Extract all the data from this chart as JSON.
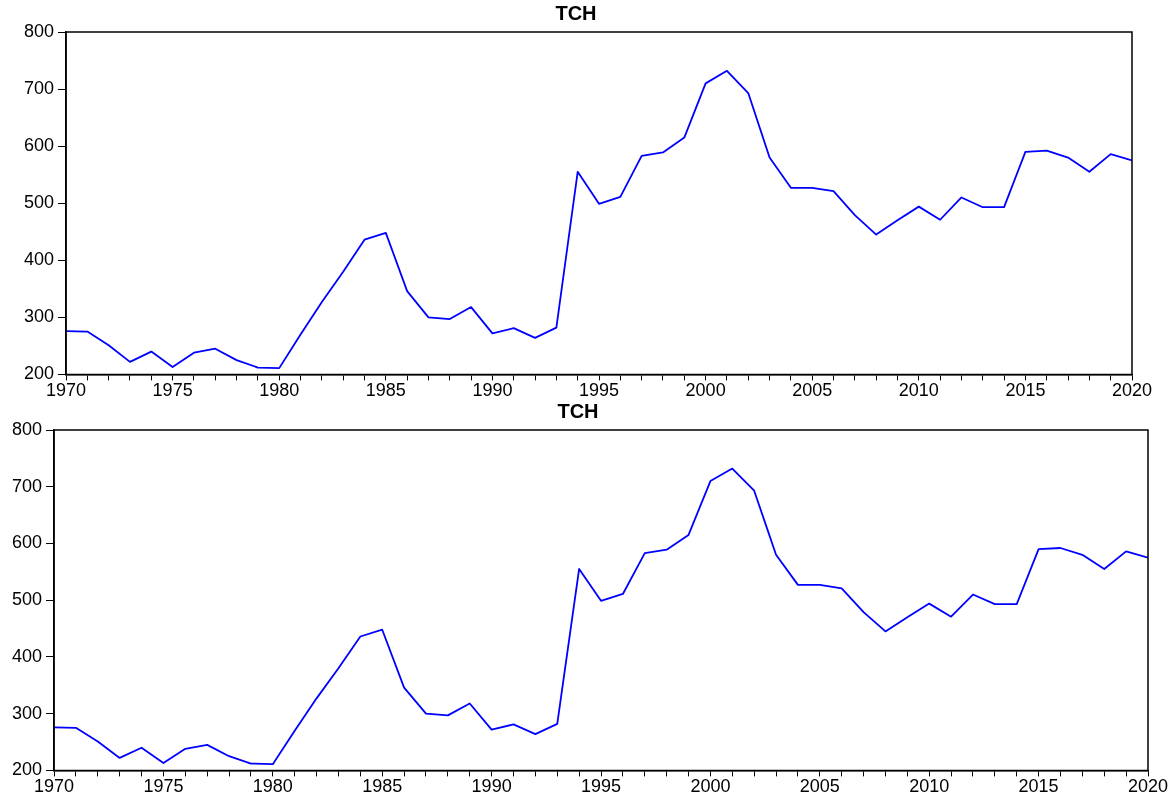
{
  "chart_data": [
    {
      "type": "line",
      "title": "TCH",
      "x": [
        1970,
        1971,
        1972,
        1973,
        1974,
        1975,
        1976,
        1977,
        1978,
        1979,
        1980,
        1981,
        1982,
        1983,
        1984,
        1985,
        1986,
        1987,
        1988,
        1989,
        1990,
        1991,
        1992,
        1993,
        1994,
        1995,
        1996,
        1997,
        1998,
        1999,
        2000,
        2001,
        2002,
        2003,
        2004,
        2005,
        2006,
        2007,
        2008,
        2009,
        2010,
        2011,
        2012,
        2013,
        2014,
        2015,
        2016,
        2017,
        2018,
        2019,
        2020
      ],
      "series": [
        {
          "color": "#0000ff",
          "values": [
            276,
            275,
            251,
            222,
            240,
            213,
            238,
            245,
            225,
            212,
            211,
            270,
            327,
            380,
            436,
            448,
            346,
            300,
            297,
            318,
            272,
            281,
            264,
            282,
            555,
            499,
            511,
            583,
            589,
            615,
            710,
            732,
            693,
            580,
            527,
            527,
            521,
            479,
            445,
            470,
            494,
            471,
            510,
            493,
            493,
            590,
            592,
            580,
            555,
            586,
            575
          ]
        }
      ],
      "xlim": [
        1970,
        2020
      ],
      "xticks": [
        1970,
        {
          "value": 1971,
          "label": null
        },
        {
          "value": 1972,
          "label": null
        },
        {
          "value": 1973,
          "label": null
        },
        {
          "value": 1974,
          "label": null
        },
        1975,
        {
          "value": 1976,
          "label": null
        },
        {
          "value": 1977,
          "label": null
        },
        {
          "value": 1978,
          "label": null
        },
        {
          "value": 1979,
          "label": null
        },
        1980,
        {
          "value": 1981,
          "label": null
        },
        {
          "value": 1982,
          "label": null
        },
        {
          "value": 1983,
          "label": null
        },
        {
          "value": 1984,
          "label": null
        },
        1985,
        {
          "value": 1986,
          "label": null
        },
        {
          "value": 1987,
          "label": null
        },
        {
          "value": 1988,
          "label": null
        },
        {
          "value": 1989,
          "label": null
        },
        1990,
        {
          "value": 1991,
          "label": null
        },
        {
          "value": 1992,
          "label": null
        },
        {
          "value": 1993,
          "label": null
        },
        {
          "value": 1994,
          "label": null
        },
        1995,
        {
          "value": 1996,
          "label": null
        },
        {
          "value": 1997,
          "label": null
        },
        {
          "value": 1998,
          "label": null
        },
        {
          "value": 1999,
          "label": null
        },
        2000,
        {
          "value": 2001,
          "label": null
        },
        {
          "value": 2002,
          "label": null
        },
        {
          "value": 2003,
          "label": null
        },
        {
          "value": 2004,
          "label": null
        },
        2005,
        {
          "value": 2006,
          "label": null
        },
        {
          "value": 2007,
          "label": null
        },
        {
          "value": 2008,
          "label": null
        },
        {
          "value": 2009,
          "label": null
        },
        2010,
        {
          "value": 2011,
          "label": null
        },
        {
          "value": 2012,
          "label": null
        },
        {
          "value": 2013,
          "label": null
        },
        {
          "value": 2014,
          "label": null
        },
        2015,
        {
          "value": 2016,
          "label": null
        },
        {
          "value": 2017,
          "label": null
        },
        {
          "value": 2018,
          "label": null
        },
        {
          "value": 2019,
          "label": null
        },
        2020
      ],
      "ylim": [
        200,
        800
      ],
      "yticks": [
        200,
        300,
        400,
        500,
        600,
        700,
        800
      ],
      "grid": false,
      "legend": false,
      "marker": "none",
      "line_style": "solid"
    },
    {
      "type": "line",
      "title": "TCH",
      "x": [
        1970,
        1971,
        1972,
        1973,
        1974,
        1975,
        1976,
        1977,
        1978,
        1979,
        1980,
        1981,
        1982,
        1983,
        1984,
        1985,
        1986,
        1987,
        1988,
        1989,
        1990,
        1991,
        1992,
        1993,
        1994,
        1995,
        1996,
        1997,
        1998,
        1999,
        2000,
        2001,
        2002,
        2003,
        2004,
        2005,
        2006,
        2007,
        2008,
        2009,
        2010,
        2011,
        2012,
        2013,
        2014,
        2015,
        2016,
        2017,
        2018,
        2019,
        2020
      ],
      "series": [
        {
          "color": "#0000ff",
          "values": [
            276,
            275,
            251,
            222,
            240,
            213,
            238,
            245,
            225,
            212,
            211,
            270,
            327,
            380,
            436,
            448,
            346,
            300,
            297,
            318,
            272,
            281,
            264,
            282,
            555,
            499,
            511,
            583,
            589,
            615,
            710,
            732,
            693,
            580,
            527,
            527,
            521,
            479,
            445,
            470,
            494,
            471,
            510,
            493,
            493,
            590,
            592,
            580,
            555,
            586,
            575
          ]
        }
      ],
      "xlim": [
        1970,
        2020
      ],
      "xticks": [
        1970,
        {
          "value": 1971,
          "label": null
        },
        {
          "value": 1972,
          "label": null
        },
        {
          "value": 1973,
          "label": null
        },
        {
          "value": 1974,
          "label": null
        },
        1975,
        {
          "value": 1976,
          "label": null
        },
        {
          "value": 1977,
          "label": null
        },
        {
          "value": 1978,
          "label": null
        },
        {
          "value": 1979,
          "label": null
        },
        1980,
        {
          "value": 1981,
          "label": null
        },
        {
          "value": 1982,
          "label": null
        },
        {
          "value": 1983,
          "label": null
        },
        {
          "value": 1984,
          "label": null
        },
        1985,
        {
          "value": 1986,
          "label": null
        },
        {
          "value": 1987,
          "label": null
        },
        {
          "value": 1988,
          "label": null
        },
        {
          "value": 1989,
          "label": null
        },
        1990,
        {
          "value": 1991,
          "label": null
        },
        {
          "value": 1992,
          "label": null
        },
        {
          "value": 1993,
          "label": null
        },
        {
          "value": 1994,
          "label": null
        },
        1995,
        {
          "value": 1996,
          "label": null
        },
        {
          "value": 1997,
          "label": null
        },
        {
          "value": 1998,
          "label": null
        },
        {
          "value": 1999,
          "label": null
        },
        2000,
        {
          "value": 2001,
          "label": null
        },
        {
          "value": 2002,
          "label": null
        },
        {
          "value": 2003,
          "label": null
        },
        {
          "value": 2004,
          "label": null
        },
        2005,
        {
          "value": 2006,
          "label": null
        },
        {
          "value": 2007,
          "label": null
        },
        {
          "value": 2008,
          "label": null
        },
        {
          "value": 2009,
          "label": null
        },
        2010,
        {
          "value": 2011,
          "label": null
        },
        {
          "value": 2012,
          "label": null
        },
        {
          "value": 2013,
          "label": null
        },
        {
          "value": 2014,
          "label": null
        },
        2015,
        {
          "value": 2016,
          "label": null
        },
        {
          "value": 2017,
          "label": null
        },
        {
          "value": 2018,
          "label": null
        },
        {
          "value": 2019,
          "label": null
        },
        2020
      ],
      "ylim": [
        200,
        800
      ],
      "yticks": [
        200,
        300,
        400,
        500,
        600,
        700,
        800
      ],
      "grid": false,
      "legend": false,
      "marker": "none",
      "line_style": "solid"
    }
  ]
}
